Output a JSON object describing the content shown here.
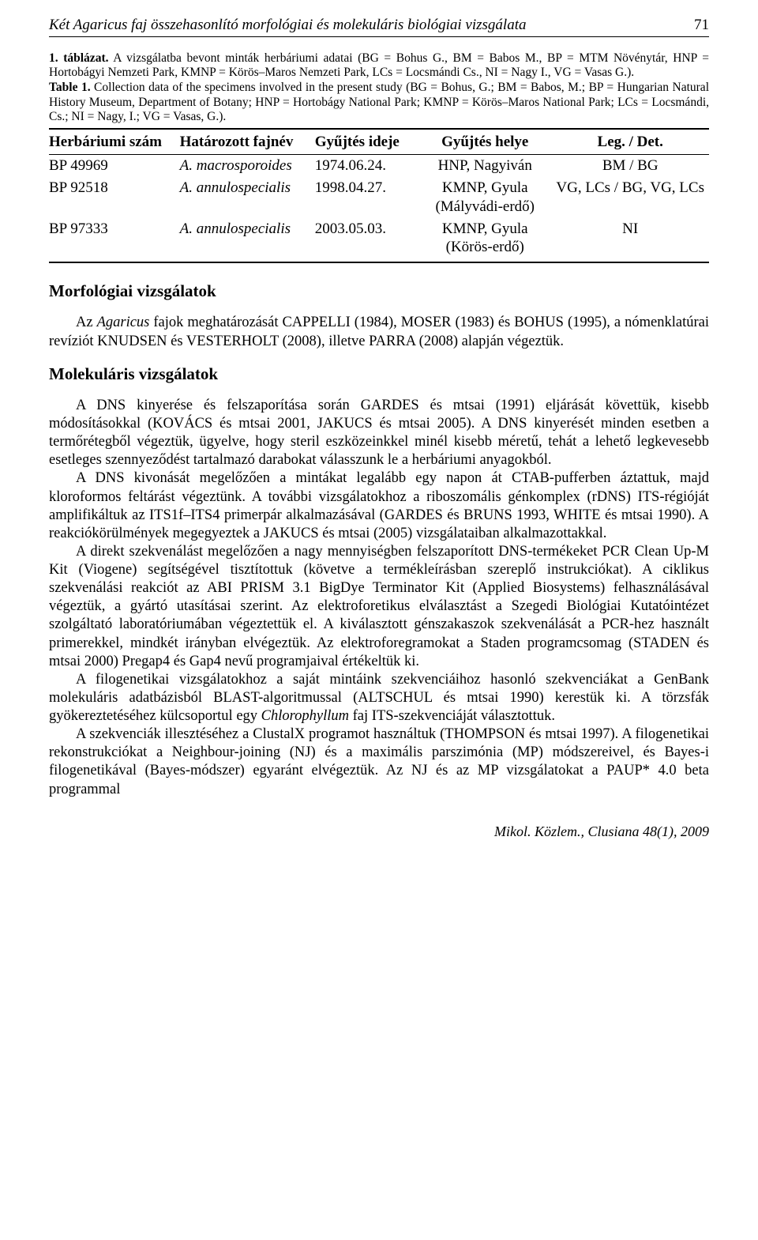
{
  "header": {
    "running_title": "Két Agaricus faj összehasonlító morfológiai és molekuláris biológiai vizsgálata",
    "page_number": "71"
  },
  "table_caption": {
    "hu_bold": "1. táblázat.",
    "hu_text": " A vizsgálatba bevont minták herbáriumi adatai (BG = Bohus G., BM = Babos M., BP = MTM Növénytár, HNP = Hortobágyi Nemzeti Park, KMNP = Körös–Maros Nemzeti Park, LCs = Locsmándi Cs., NI = Nagy I., VG = Vasas G.).",
    "en_bold": "Table 1.",
    "en_text": " Collection data of the specimens involved in the present study (BG = Bohus, G.; BM = Babos, M.; BP = Hungarian Natural History Museum, Department of Botany; HNP = Hortobágy National Park; KMNP = Körös–Maros National Park; LCs = Locsmándi, Cs.; NI = Nagy, I.; VG = Vasas, G.)."
  },
  "table": {
    "columns": [
      "Herbáriumi szám",
      "Határozott fajnév",
      "Gyűjtés ideje",
      "Gyűjtés helye",
      "Leg. / Det."
    ],
    "rows": [
      {
        "id": "BP 49969",
        "species": "A. macrosporoides",
        "date": "1974.06.24.",
        "place": "HNP, Nagyiván",
        "legdet": "BM / BG"
      },
      {
        "id": "BP 92518",
        "species": "A. annulospecialis",
        "date": "1998.04.27.",
        "place": "KMNP, Gyula (Mályvádi-erdő)",
        "legdet": "VG, LCs / BG, VG, LCs"
      },
      {
        "id": "BP 97333",
        "species": "A. annulospecialis",
        "date": "2003.05.03.",
        "place": "KMNP, Gyula (Körös-erdő)",
        "legdet": "NI"
      }
    ]
  },
  "sections": {
    "morf_heading": "Morfológiai vizsgálatok",
    "morf_p1_a": "Az ",
    "morf_p1_b": "Agaricus",
    "morf_p1_c": " fajok meghatározását CAPPELLI (1984), MOSER (1983) és BOHUS (1995), a nómenklatúrai revíziót KNUDSEN és VESTERHOLT (2008), illetve PARRA (2008) alapján végeztük.",
    "mol_heading": "Molekuláris vizsgálatok",
    "mol_p1": "A DNS kinyerése és felszaporítása során GARDES és mtsai (1991) eljárását követtük, kisebb módosításokkal (KOVÁCS és mtsai 2001, JAKUCS és mtsai 2005). A DNS kinyerését minden esetben a termőrétegből végeztük, ügyelve, hogy steril eszközeinkkel minél kisebb méretű, tehát a lehető legkevesebb esetleges szennyeződést tartalmazó darabokat válasszunk le a herbáriumi anyagokból.",
    "mol_p2": "A DNS kivonását megelőzően a mintákat legalább egy napon át CTAB-pufferben áztattuk, majd kloroformos feltárást végeztünk. A további vizsgálatokhoz a riboszomális génkomplex (rDNS) ITS-régióját amplifikáltuk az ITS1f–ITS4 primerpár alkalmazásával (GARDES és BRUNS 1993, WHITE és mtsai 1990). A reakciókörülmények megegyeztek a JAKUCS és mtsai (2005) vizsgálataiban alkalmazottakkal.",
    "mol_p3": "A direkt szekvenálást megelőzően a nagy mennyiségben felszaporított DNS-termékeket PCR Clean Up-M Kit (Viogene) segítségével tisztítottuk (követve a termékleírásban szereplő instrukciókat). A ciklikus szekvenálási reakciót az ABI PRISM 3.1 BigDye Terminator Kit (Applied Biosystems) felhasználásával végeztük, a gyártó utasításai szerint. Az elektroforetikus elválasztást a Szegedi Biológiai Kutatóintézet szolgáltató laboratóriumában végeztettük el. A kiválasztott génszakaszok szekvenálását a PCR-hez használt primerekkel, mindkét irányban elvégeztük. Az elektroforegramokat a Staden programcsomag (STADEN és mtsai 2000) Pregap4 és Gap4 nevű programjaival értékeltük ki.",
    "mol_p4_a": "A filogenetikai vizsgálatokhoz a saját mintáink szekvenciáihoz hasonló szekvenciákat a GenBank molekuláris adatbázisból BLAST-algoritmussal (ALTSCHUL és mtsai 1990) kerestük ki. A törzsfák gyökereztetéséhez külcsoportul egy ",
    "mol_p4_b": "Chlorophyllum",
    "mol_p4_c": " faj ITS-szekvenciáját választottuk.",
    "mol_p5": "A szekvenciák illesztéséhez a ClustalX programot használtuk (THOMPSON és mtsai 1997). A filogenetikai rekonstrukciókat a Neighbour-joining (NJ) és a maximális parszimónia (MP) módszereivel, és Bayes-i filogenetikával (Bayes-módszer) egyaránt elvégeztük. Az NJ és az MP vizsgálatokat a PAUP* 4.0 beta programmal"
  },
  "footer": "Mikol. Közlem., Clusiana 48(1), 2009"
}
